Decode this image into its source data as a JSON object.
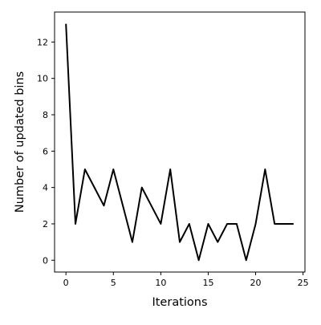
{
  "chart_data": {
    "type": "line",
    "title": "",
    "xlabel": "Iterations",
    "ylabel": "Number of updated bins",
    "xlim": [
      -1.2,
      25.2
    ],
    "ylim": [
      -0.65,
      13.65
    ],
    "xticks": [
      0,
      5,
      10,
      15,
      20,
      25
    ],
    "yticks": [
      0,
      2,
      4,
      6,
      8,
      10,
      12
    ],
    "xtick_labels": [
      "0",
      "5",
      "10",
      "15",
      "20",
      "25"
    ],
    "ytick_labels": [
      "0",
      "2",
      "4",
      "6",
      "8",
      "10",
      "12"
    ],
    "grid": false,
    "series": [
      {
        "color": "#000000",
        "x": [
          0,
          1,
          2,
          3,
          4,
          5,
          6,
          7,
          8,
          9,
          10,
          11,
          12,
          13,
          14,
          15,
          16,
          17,
          18,
          19,
          20,
          21,
          22,
          23,
          24
        ],
        "y": [
          13,
          2,
          5,
          4,
          3,
          5,
          3,
          1,
          4,
          3,
          2,
          5,
          1,
          2,
          0,
          2,
          1,
          2,
          2,
          0,
          2,
          5,
          2,
          2,
          2
        ]
      }
    ]
  }
}
